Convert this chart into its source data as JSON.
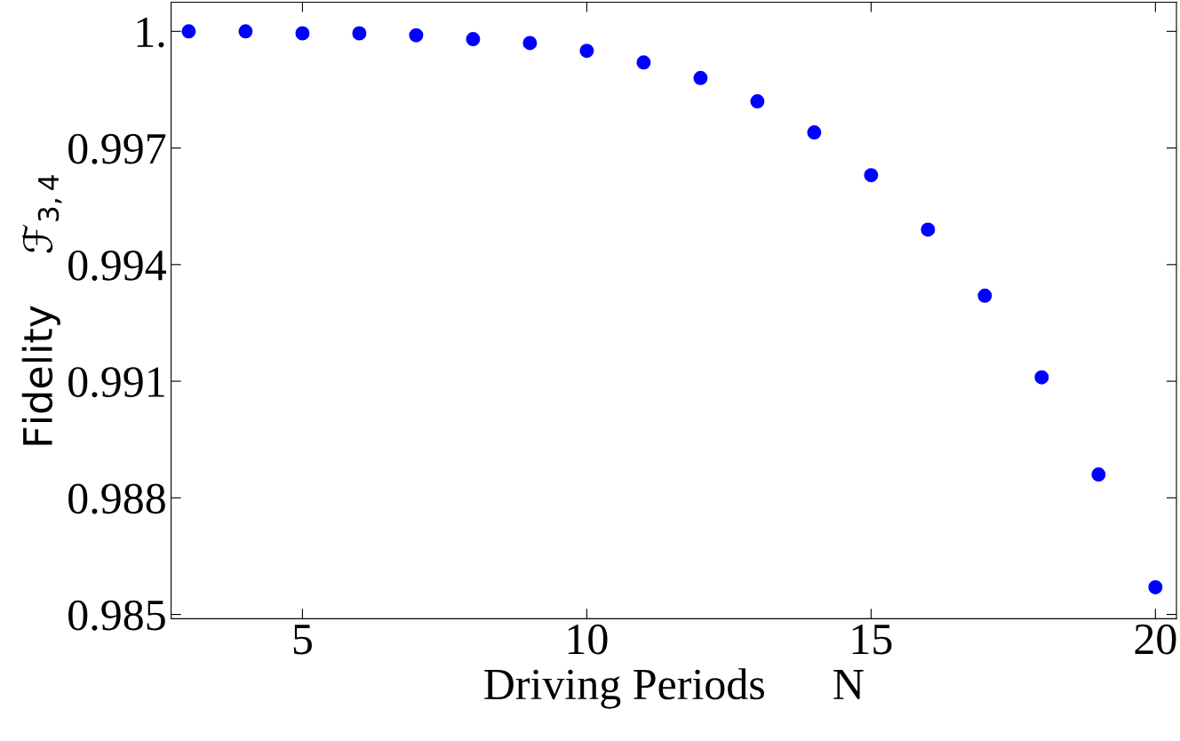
{
  "chart_data": {
    "type": "scatter",
    "xlabel": "Driving Periods      N",
    "ylabel": "Fidelity    ℱ$_{3,4}$",
    "x": [
      3,
      4,
      5,
      6,
      7,
      8,
      9,
      10,
      11,
      12,
      13,
      14,
      15,
      16,
      17,
      18,
      19,
      20
    ],
    "series": [
      {
        "color": "#0000ff",
        "values": [
          1.0,
          1.0,
          0.99995,
          0.99995,
          0.9999,
          0.9998,
          0.9997,
          0.9995,
          0.9992,
          0.9988,
          0.9982,
          0.9974,
          0.9963,
          0.9949,
          0.9932,
          0.9911,
          0.9886,
          0.9857
        ]
      }
    ],
    "xlim": [
      2.69,
      20.37
    ],
    "ylim": [
      0.98489,
      1.00075
    ],
    "xticks": [
      5,
      10,
      15,
      20
    ],
    "yticks": [
      0.985,
      0.988,
      0.991,
      0.994,
      0.997,
      {
        "value": 1,
        "label": "1."
      }
    ],
    "marker": "circle"
  }
}
